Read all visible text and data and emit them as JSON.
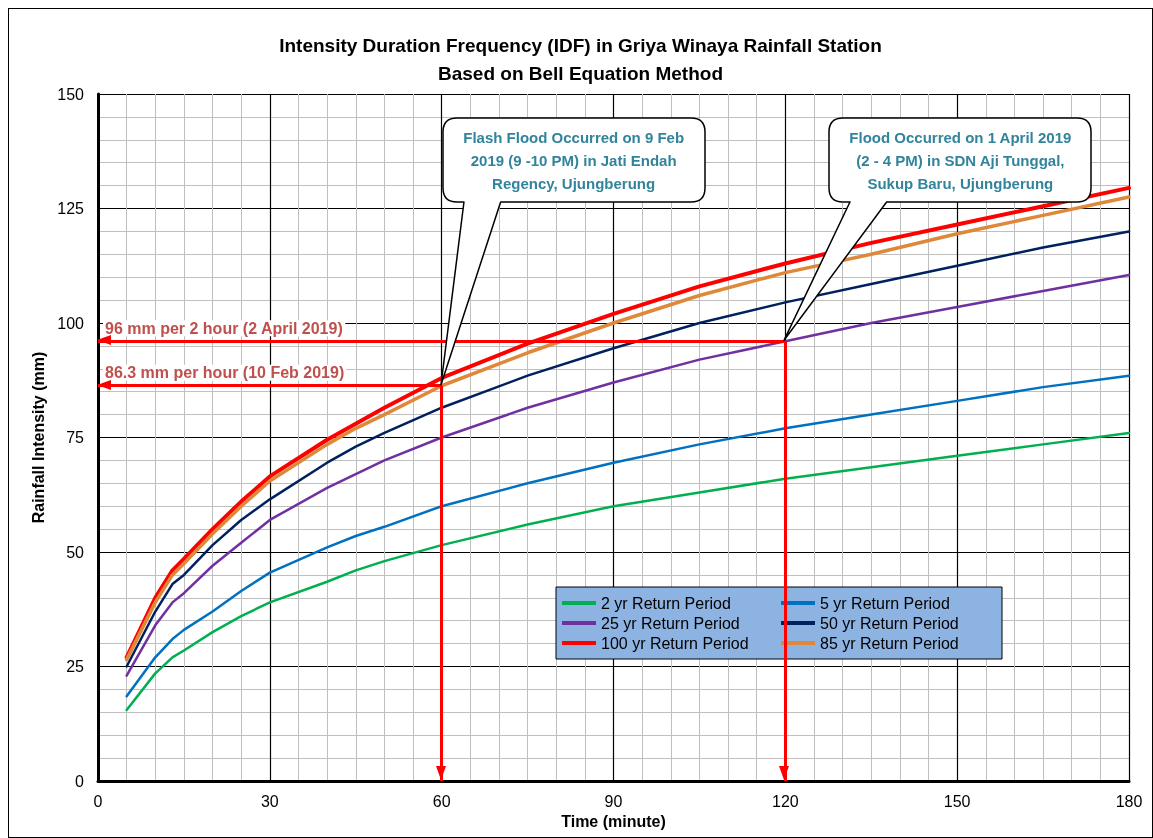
{
  "chart_data": {
    "type": "line",
    "title": "Intensity Duration Frequency (IDF) in Griya Winaya Rainfall Station",
    "subtitle": "Based on Bell Equation Method",
    "xlabel": "Time (minute)",
    "ylabel": "Rainfall Intensity (mm)",
    "x": [
      5,
      10,
      13,
      15,
      20,
      25,
      30,
      40,
      45,
      50,
      60,
      75,
      90,
      105,
      120,
      135,
      150,
      165,
      180
    ],
    "series": [
      {
        "name": "2 yr Return Period",
        "color": "#00b050",
        "values": [
          15.5,
          23.5,
          27,
          28.5,
          32.5,
          36,
          39,
          43.5,
          46,
          48,
          51.5,
          56,
          60,
          63,
          66,
          68.5,
          71,
          73.5,
          76
        ]
      },
      {
        "name": "5 yr Return Period",
        "color": "#0070c0",
        "values": [
          18.5,
          27,
          31,
          33,
          37,
          41.5,
          45.5,
          51,
          53.5,
          55.5,
          60,
          65,
          69.5,
          73.5,
          77,
          80,
          83,
          86,
          88.5
        ]
      },
      {
        "name": "25 yr Return Period",
        "color": "#7030a0",
        "values": [
          23,
          34,
          39,
          41,
          47,
          52,
          57,
          64,
          67,
          70,
          75,
          81.5,
          87,
          92,
          96,
          100,
          103.5,
          107,
          110.5
        ]
      },
      {
        "name": "50 yr Return Period",
        "color": "#002060",
        "values": [
          25,
          37,
          43,
          45,
          51.5,
          57,
          61.5,
          69.5,
          73,
          76,
          81.5,
          88.5,
          94.5,
          100,
          104.5,
          108.5,
          112.5,
          116.5,
          120
        ]
      },
      {
        "name": "100 yr Return Period",
        "color": "#ff0000",
        "values": [
          27,
          40,
          46,
          48.5,
          55,
          61,
          66.5,
          74.5,
          78,
          81.5,
          88,
          95.5,
          102,
          108,
          113,
          117.5,
          121.5,
          125.5,
          129.5
        ]
      },
      {
        "name": "85 yr Return Period",
        "color": "#e0883a",
        "values": [
          26.5,
          39,
          45,
          47.5,
          54,
          60,
          65.5,
          73.5,
          77,
          80,
          86.3,
          93.5,
          100,
          106,
          111,
          115,
          119.5,
          123.5,
          127.5
        ]
      }
    ],
    "ref_lines": [
      {
        "axis": "y",
        "value": 86.3,
        "label": "86.3 mm per hour (10 Feb 2019)",
        "color": "#ff0000"
      },
      {
        "axis": "x",
        "value": 60,
        "color": "#ff0000"
      },
      {
        "axis": "y",
        "value": 96,
        "label": "96 mm per 2 hour (2 April 2019)",
        "color": "#ff0000"
      },
      {
        "axis": "x",
        "value": 120,
        "color": "#ff0000"
      }
    ],
    "annotations": [
      "Flash Flood Occurred on 9 Feb 2019 (9 -10 PM) in Jati Endah Regency, Ujungberung",
      "Flood Occurred on 1 April 2019 (2 - 4 PM) in SDN Aji Tunggal, Sukup Baru, Ujungberung"
    ],
    "xlim": [
      0,
      180
    ],
    "xticks": [
      0,
      30,
      60,
      90,
      120,
      150,
      180
    ],
    "ylim": [
      0,
      150
    ],
    "yticks": [
      0,
      25,
      50,
      75,
      100,
      125,
      150
    ],
    "grid": true,
    "legend": "bottom right",
    "marker": "none",
    "line_style": "solid"
  }
}
